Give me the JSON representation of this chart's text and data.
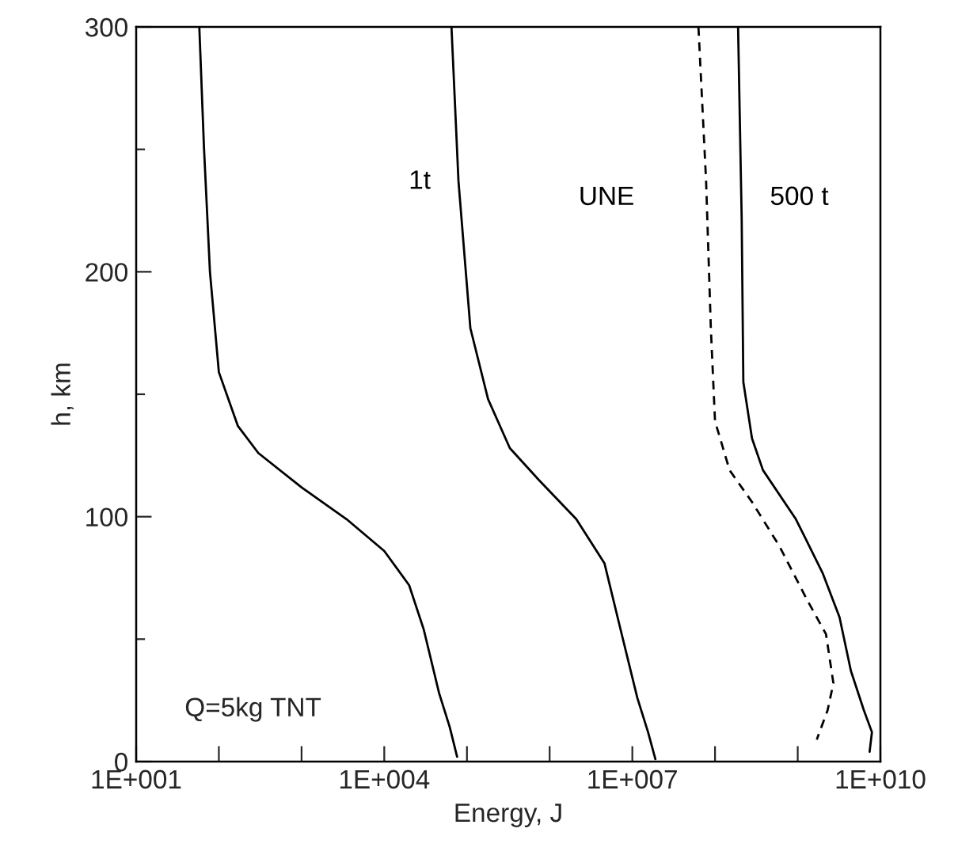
{
  "chart_data": {
    "type": "line",
    "xlabel": "Energy, J",
    "ylabel": "h, km",
    "log": "x",
    "grid": false,
    "xlim": [
      10,
      10000000000.0
    ],
    "ylim": [
      0,
      300
    ],
    "xticks": [
      {
        "value": 10,
        "label": "1E+001"
      },
      {
        "value": 100,
        "label": null
      },
      {
        "value": 1000,
        "label": null
      },
      {
        "value": 10000,
        "label": "1E+004"
      },
      {
        "value": 100000,
        "label": null
      },
      {
        "value": 1000000,
        "label": null
      },
      {
        "value": 10000000,
        "label": "1E+007"
      },
      {
        "value": 100000000,
        "label": null
      },
      {
        "value": 1000000000,
        "label": null
      },
      {
        "value": 10000000000,
        "label": "1E+010"
      }
    ],
    "yticks": [
      0,
      {
        "value": 50,
        "label": null
      },
      100,
      {
        "value": 150,
        "label": null
      },
      200,
      {
        "value": 250,
        "label": null
      },
      300
    ],
    "series": [
      {
        "color": "#000000",
        "line_style": "solid",
        "x": [
          58.0,
          66.0,
          78.0,
          100.0,
          170.0,
          300.0,
          1000.0,
          3500.0,
          10000.0,
          20000.0,
          30000.0,
          46000.0,
          62000.0,
          76000.0
        ],
        "values": [
          300,
          251,
          200,
          159,
          137,
          126,
          112,
          99,
          86,
          72,
          54,
          28,
          14,
          2
        ]
      },
      {
        "name": "1t",
        "color": "#000000",
        "line_style": "solid",
        "x": [
          65000.0,
          79000.0,
          110000.0,
          180000.0,
          330000.0,
          740000.0,
          2100000.0,
          4600000.0,
          7200000.0,
          11500000.0,
          15500000.0,
          19000000.0
        ],
        "values": [
          300,
          237,
          177,
          148,
          128,
          115,
          99,
          81,
          54,
          26,
          12,
          1
        ]
      },
      {
        "name": "UNE",
        "color": "#000000",
        "line_style": "dashed",
        "x": [
          63000000.0,
          78000000.0,
          89000000.0,
          100000000.0,
          150000000.0,
          280000000.0,
          600000000.0,
          1300000000.0,
          2200000000.0,
          2700000000.0,
          2300000000.0,
          1700000000.0
        ],
        "values": [
          300,
          237,
          177,
          139,
          119,
          106,
          88,
          66,
          52,
          32,
          21,
          9
        ]
      },
      {
        "name": "500 t",
        "color": "#000000",
        "line_style": "solid",
        "x": [
          190000000.0,
          210000000.0,
          220000000.0,
          280000000.0,
          380000000.0,
          950000000.0,
          2000000000.0,
          3200000000.0,
          4400000000.0,
          6300000000.0,
          7900000000.0,
          7400000000.0
        ],
        "values": [
          300,
          222,
          155,
          132,
          119,
          99,
          77,
          59,
          37,
          21,
          12,
          4
        ]
      }
    ],
    "annotations": [
      "Q=5kg TNT"
    ]
  }
}
